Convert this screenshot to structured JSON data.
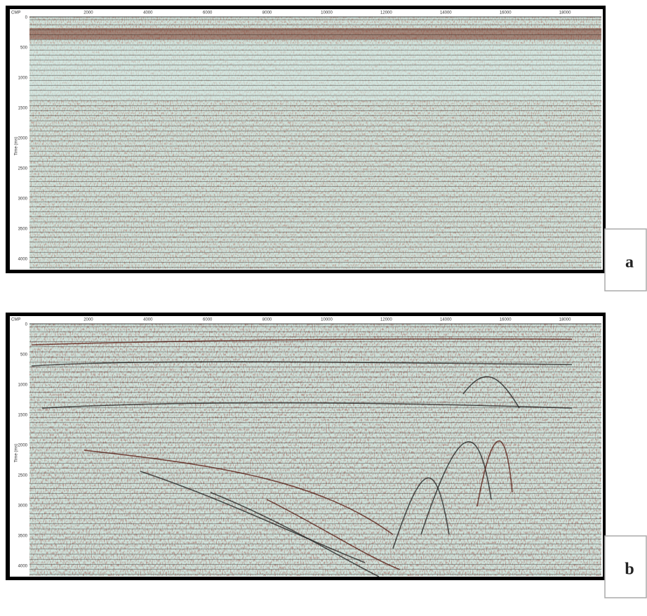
{
  "panels": [
    {
      "label": "a",
      "x_axis_label": "CMP",
      "x_ticks": [
        2000,
        4000,
        6000,
        8000,
        10000,
        12000,
        14000,
        16000,
        18000
      ],
      "y_axis_label": "Time (ms)",
      "y_ticks": [
        0,
        500,
        1000,
        1500,
        2000,
        2500,
        3000,
        3500,
        4000
      ]
    },
    {
      "label": "b",
      "x_axis_label": "CMP",
      "x_ticks": [
        2000,
        4000,
        6000,
        8000,
        10000,
        12000,
        14000,
        16000,
        18000
      ],
      "y_axis_label": "Time (ms)",
      "y_ticks": [
        0,
        500,
        1000,
        1500,
        2000,
        2500,
        3000,
        3500,
        4000
      ]
    }
  ]
}
